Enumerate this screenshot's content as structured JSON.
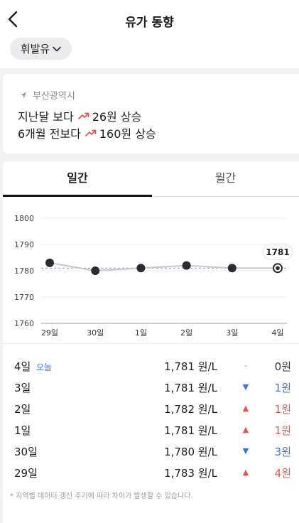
{
  "header": {
    "title": "유가 동향",
    "fuel_type": "휘발유"
  },
  "summary": {
    "region": "부산광역시",
    "line1_prefix": "지난달 보다",
    "line1_value": "26원 상승",
    "line2_prefix": "6개월 전보다",
    "line2_value": "160원 상승"
  },
  "tabs": [
    {
      "label": "일간",
      "active": true
    },
    {
      "label": "월간",
      "active": false
    }
  ],
  "chart_data": {
    "type": "line",
    "categories": [
      "29일",
      "30일",
      "1일",
      "2일",
      "3일",
      "4일"
    ],
    "values": [
      1783,
      1780,
      1781,
      1782,
      1781,
      1781
    ],
    "ylim": [
      1760,
      1800
    ],
    "yticks": [
      "1800",
      "1790",
      "1780",
      "1770",
      "1760"
    ],
    "reference_line": 1781,
    "highlight_label": "1781",
    "grid": true
  },
  "price_rows": [
    {
      "day": "4일",
      "tag": "오늘",
      "price": "1,781 원/L",
      "direction": "flat",
      "arrow": "–",
      "diff": "0원"
    },
    {
      "day": "3일",
      "tag": "",
      "price": "1,781 원/L",
      "direction": "down",
      "arrow": "▼",
      "diff": "1원"
    },
    {
      "day": "2일",
      "tag": "",
      "price": "1,782 원/L",
      "direction": "up",
      "arrow": "▲",
      "diff": "1원"
    },
    {
      "day": "1일",
      "tag": "",
      "price": "1,781 원/L",
      "direction": "up",
      "arrow": "▲",
      "diff": "1원"
    },
    {
      "day": "30일",
      "tag": "",
      "price": "1,780 원/L",
      "direction": "down",
      "arrow": "▼",
      "diff": "3원"
    },
    {
      "day": "29일",
      "tag": "",
      "price": "1,783 원/L",
      "direction": "up",
      "arrow": "▲",
      "diff": "4원"
    }
  ],
  "note": "* 지역별 데이터 갱신 주기에 따라 차이가 발생할 수 있습니다.",
  "colors": {
    "up": "#e5544b",
    "down": "#3b74e0",
    "trend_icon": "#e5544b"
  }
}
